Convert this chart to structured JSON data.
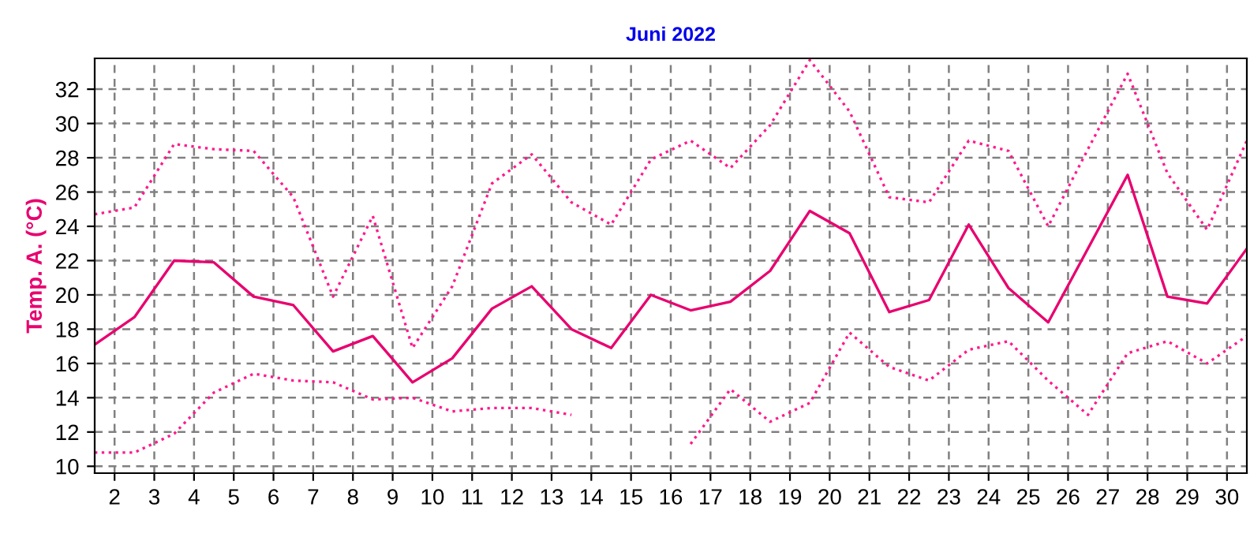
{
  "chart_data": {
    "type": "line",
    "title": "Juni 2022",
    "ylabel": "Temp. A. (°C)",
    "x": [
      1.5,
      2.5,
      3.5,
      4.5,
      5.5,
      6.5,
      7.5,
      8.5,
      9.5,
      10.5,
      11.5,
      12.5,
      13.5,
      14.5,
      15.5,
      16.5,
      17.5,
      18.5,
      19.5,
      20.5,
      21.5,
      22.5,
      23.5,
      24.5,
      25.5,
      26.5,
      27.5,
      28.5,
      29.5,
      30.5
    ],
    "series": [
      {
        "color": "#ff1a8c",
        "line_style": "dotted",
        "values": [
          24.7,
          25.1,
          28.8,
          28.5,
          28.4,
          25.7,
          19.9,
          24.6,
          16.9,
          20.5,
          26.5,
          28.2,
          25.4,
          24.1,
          27.9,
          29.0,
          27.4,
          29.9,
          33.7,
          30.7,
          25.7,
          25.4,
          29.0,
          28.4,
          24.0,
          28.5,
          32.9,
          27.1,
          23.8,
          29.0
        ]
      },
      {
        "color": "#e8006f",
        "line_style": "solid",
        "values": [
          17.1,
          18.7,
          22.0,
          21.9,
          19.9,
          19.4,
          16.7,
          17.6,
          14.9,
          16.3,
          19.2,
          20.5,
          18.0,
          16.9,
          20.0,
          19.1,
          19.6,
          21.4,
          24.9,
          23.6,
          19.0,
          19.7,
          24.1,
          20.4,
          18.4,
          22.7,
          27.0,
          19.9,
          19.5,
          22.7
        ]
      },
      {
        "color": "#ff1a8c",
        "line_style": "dotted",
        "values": [
          10.8,
          10.8,
          11.9,
          14.3,
          15.4,
          15.0,
          14.9,
          13.9,
          14.0,
          13.2,
          13.4,
          13.4,
          13.0,
          null,
          null,
          11.3,
          14.5,
          12.6,
          13.7,
          17.8,
          15.8,
          15.0,
          16.8,
          17.3,
          15.0,
          13.0,
          16.6,
          17.3,
          16.0,
          17.6
        ]
      }
    ],
    "xlim": [
      1.5,
      30.5
    ],
    "xticks": [
      2,
      3,
      4,
      5,
      6,
      7,
      8,
      9,
      10,
      11,
      12,
      13,
      14,
      15,
      16,
      17,
      18,
      19,
      20,
      21,
      22,
      23,
      24,
      25,
      26,
      27,
      28,
      29,
      30
    ],
    "ylim": [
      9.6,
      33.8
    ],
    "yticks": [
      10,
      12,
      14,
      16,
      18,
      20,
      22,
      24,
      26,
      28,
      30,
      32
    ],
    "grid": true,
    "marker": "none"
  }
}
